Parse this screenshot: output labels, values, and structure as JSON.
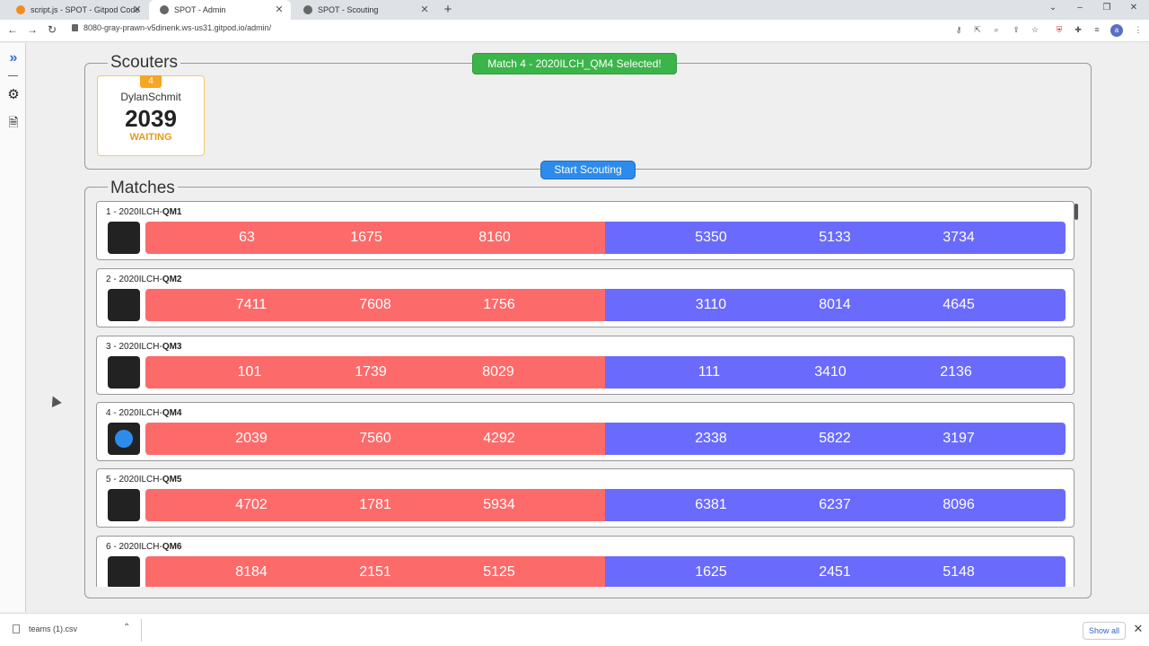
{
  "browser": {
    "tabs": [
      {
        "title": "script.js - SPOT - Gitpod Code",
        "favicon_color": "#f28c1e"
      },
      {
        "title": "SPOT - Admin",
        "favicon_color": "#666666"
      },
      {
        "title": "SPOT - Scouting",
        "favicon_color": "#666666"
      }
    ],
    "url": "8080-gray-prawn-v5dinenk.ws-us31.gitpod.io/admin/",
    "profile_initial": "a"
  },
  "sidebar": {
    "icons": [
      "chevrons-right-icon",
      "gear-icon",
      "file-download-icon"
    ]
  },
  "scouters": {
    "title": "Scouters",
    "list": [
      {
        "number": "4",
        "name": "DylanSchmit",
        "team": "2039",
        "status": "WAITING"
      }
    ]
  },
  "toast": "Match 4 - 2020ILCH_QM4 Selected!",
  "start_button": "Start Scouting",
  "matches": {
    "title": "Matches",
    "list": [
      {
        "prefix": "1 - 2020ILCH-",
        "code": "QM1",
        "selected": false,
        "red": [
          "63",
          "1675",
          "8160"
        ],
        "blue": [
          "5350",
          "5133",
          "3734"
        ]
      },
      {
        "prefix": "2 - 2020ILCH-",
        "code": "QM2",
        "selected": false,
        "red": [
          "7411",
          "7608",
          "1756"
        ],
        "blue": [
          "3110",
          "8014",
          "4645"
        ]
      },
      {
        "prefix": "3 - 2020ILCH-",
        "code": "QM3",
        "selected": false,
        "red": [
          "101",
          "1739",
          "8029"
        ],
        "blue": [
          "111",
          "3410",
          "2136"
        ]
      },
      {
        "prefix": "4 - 2020ILCH-",
        "code": "QM4",
        "selected": true,
        "red": [
          "2039",
          "7560",
          "4292"
        ],
        "blue": [
          "2338",
          "5822",
          "3197"
        ]
      },
      {
        "prefix": "5 - 2020ILCH-",
        "code": "QM5",
        "selected": false,
        "red": [
          "4702",
          "1781",
          "5934"
        ],
        "blue": [
          "6381",
          "6237",
          "8096"
        ]
      },
      {
        "prefix": "6 - 2020ILCH-",
        "code": "QM6",
        "selected": false,
        "red": [
          "8184",
          "2151",
          "5125"
        ],
        "blue": [
          "1625",
          "2451",
          "5148"
        ]
      }
    ]
  },
  "downloads": {
    "file": "teams (1).csv",
    "show_all": "Show all"
  },
  "colors": {
    "red_alliance": "#fd6a6a",
    "blue_alliance": "#6a6afd",
    "toast_green": "#3bb54a",
    "button_blue": "#2d8ceb",
    "waiting_orange": "#e39a1b"
  }
}
